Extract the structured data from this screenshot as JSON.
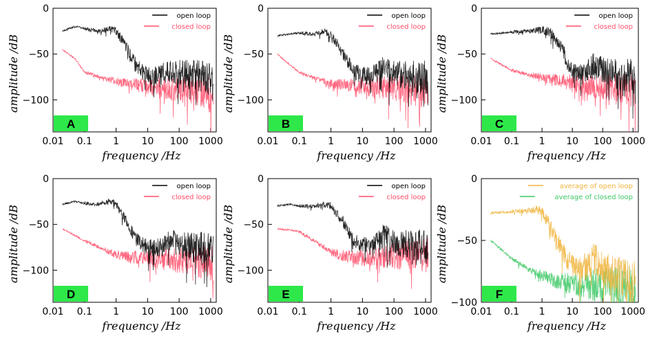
{
  "chart_data": [
    {
      "type": "line",
      "panel": "A",
      "xlabel": "frequency  /Hz",
      "ylabel": "amplitude  /dB",
      "xscale": "log",
      "xlim": [
        0.01,
        1500
      ],
      "ylim": [
        -135,
        0
      ],
      "xticks": [
        "0.01",
        "0.1",
        "1",
        "10",
        "100",
        "1000"
      ],
      "yticks": [
        "0",
        "−50",
        "−100"
      ],
      "ytick_values": [
        0,
        -50,
        -100
      ],
      "legend": "top-right",
      "series": [
        {
          "name": "open loop",
          "color": "#000000",
          "x": [
            0.02,
            0.05,
            0.1,
            0.3,
            0.6,
            1,
            2,
            4,
            8,
            15,
            30,
            50,
            80,
            150,
            300,
            600,
            1200
          ],
          "y": [
            -25,
            -20,
            -22,
            -25,
            -22,
            -25,
            -40,
            -60,
            -72,
            -75,
            -72,
            -68,
            -70,
            -72,
            -73,
            -74,
            -75
          ]
        },
        {
          "name": "closed loop",
          "color": "#ff4d6a",
          "x": [
            0.02,
            0.05,
            0.1,
            0.3,
            0.6,
            1,
            2,
            4,
            8,
            15,
            30,
            50,
            80,
            150,
            300,
            600,
            1200
          ],
          "y": [
            -45,
            -55,
            -70,
            -75,
            -78,
            -80,
            -82,
            -84,
            -85,
            -86,
            -87,
            -88,
            -88,
            -89,
            -90,
            -92,
            -95
          ]
        }
      ]
    },
    {
      "type": "line",
      "panel": "B",
      "xlabel": "frequency  /Hz",
      "ylabel": "amplitude  /dB",
      "xscale": "log",
      "xlim": [
        0.01,
        1500
      ],
      "ylim": [
        -135,
        0
      ],
      "xticks": [
        "0.01",
        "0.1",
        "1",
        "10",
        "100",
        "1000"
      ],
      "yticks": [
        "0",
        "−50",
        "−100"
      ],
      "ytick_values": [
        0,
        -50,
        -100
      ],
      "legend": "top-right",
      "series": [
        {
          "name": "open loop",
          "color": "#000000",
          "x": [
            0.02,
            0.05,
            0.1,
            0.3,
            0.6,
            1,
            2,
            4,
            8,
            15,
            30,
            50,
            80,
            150,
            300,
            600,
            1200
          ],
          "y": [
            -30,
            -28,
            -27,
            -28,
            -25,
            -28,
            -45,
            -62,
            -72,
            -74,
            -70,
            -63,
            -68,
            -72,
            -74,
            -75,
            -76
          ]
        },
        {
          "name": "closed loop",
          "color": "#ff4d6a",
          "x": [
            0.02,
            0.05,
            0.1,
            0.3,
            0.6,
            1,
            2,
            4,
            8,
            15,
            30,
            50,
            80,
            150,
            300,
            600,
            1200
          ],
          "y": [
            -50,
            -62,
            -70,
            -76,
            -80,
            -82,
            -83,
            -84,
            -85,
            -86,
            -86,
            -87,
            -88,
            -88,
            -89,
            -90,
            -92
          ]
        }
      ]
    },
    {
      "type": "line",
      "panel": "C",
      "xlabel": "frequency  /Hz",
      "ylabel": "amplitude  /dB",
      "xscale": "log",
      "xlim": [
        0.01,
        1500
      ],
      "ylim": [
        -135,
        0
      ],
      "xticks": [
        "0.01",
        "0.1",
        "1",
        "10",
        "100",
        "1000"
      ],
      "yticks": [
        "0",
        "−50",
        "−100"
      ],
      "ytick_values": [
        0,
        -50,
        -100
      ],
      "legend": "top-right",
      "series": [
        {
          "name": "open loop",
          "color": "#000000",
          "x": [
            0.02,
            0.05,
            0.1,
            0.3,
            0.6,
            1,
            2,
            4,
            8,
            15,
            30,
            50,
            80,
            150,
            300,
            600,
            1200
          ],
          "y": [
            -28,
            -27,
            -26,
            -25,
            -24,
            -24,
            -27,
            -40,
            -62,
            -72,
            -68,
            -62,
            -65,
            -70,
            -72,
            -73,
            -74
          ]
        },
        {
          "name": "closed loop",
          "color": "#ff4d6a",
          "x": [
            0.02,
            0.05,
            0.1,
            0.3,
            0.6,
            1,
            2,
            4,
            8,
            15,
            30,
            50,
            80,
            150,
            300,
            600,
            1200
          ],
          "y": [
            -55,
            -62,
            -68,
            -72,
            -74,
            -75,
            -77,
            -79,
            -81,
            -83,
            -84,
            -85,
            -86,
            -86,
            -87,
            -88,
            -90
          ]
        }
      ]
    },
    {
      "type": "line",
      "panel": "D",
      "xlabel": "frequency  /Hz",
      "ylabel": "amplitude  /dB",
      "xscale": "log",
      "xlim": [
        0.01,
        1500
      ],
      "ylim": [
        -135,
        0
      ],
      "xticks": [
        "0.01",
        "0.1",
        "1",
        "10",
        "100",
        "1000"
      ],
      "yticks": [
        "0",
        "−50",
        "−100"
      ],
      "ytick_values": [
        0,
        -50,
        -100
      ],
      "legend": "top-right",
      "series": [
        {
          "name": "open loop",
          "color": "#000000",
          "x": [
            0.02,
            0.05,
            0.1,
            0.3,
            0.6,
            1,
            2,
            4,
            8,
            15,
            30,
            50,
            80,
            150,
            300,
            600,
            1200
          ],
          "y": [
            -28,
            -25,
            -27,
            -28,
            -24,
            -28,
            -45,
            -65,
            -74,
            -76,
            -74,
            -65,
            -72,
            -74,
            -75,
            -76,
            -78
          ]
        },
        {
          "name": "closed loop",
          "color": "#ff4d6a",
          "x": [
            0.02,
            0.05,
            0.1,
            0.3,
            0.6,
            1,
            2,
            4,
            8,
            15,
            30,
            50,
            80,
            150,
            300,
            600,
            1200
          ],
          "y": [
            -55,
            -62,
            -68,
            -75,
            -80,
            -83,
            -85,
            -86,
            -87,
            -87,
            -88,
            -88,
            -89,
            -89,
            -90,
            -91,
            -93
          ]
        }
      ]
    },
    {
      "type": "line",
      "panel": "E",
      "xlabel": "frequency  /Hz",
      "ylabel": "amplitude  /dB",
      "xscale": "log",
      "xlim": [
        0.01,
        1500
      ],
      "ylim": [
        -135,
        0
      ],
      "xticks": [
        "0.01",
        "0.1",
        "1",
        "10",
        "100",
        "1000"
      ],
      "yticks": [
        "0",
        "−50",
        "−100"
      ],
      "ytick_values": [
        0,
        -50,
        -100
      ],
      "legend": "top-right",
      "series": [
        {
          "name": "open loop",
          "color": "#000000",
          "x": [
            0.02,
            0.05,
            0.1,
            0.3,
            0.6,
            1,
            2,
            4,
            8,
            15,
            30,
            50,
            80,
            150,
            300,
            600,
            1200
          ],
          "y": [
            -30,
            -28,
            -30,
            -30,
            -28,
            -30,
            -42,
            -60,
            -72,
            -74,
            -70,
            -62,
            -68,
            -70,
            -72,
            -74,
            -76
          ]
        },
        {
          "name": "closed loop",
          "color": "#ff4d6a",
          "x": [
            0.02,
            0.05,
            0.1,
            0.3,
            0.6,
            1,
            2,
            4,
            8,
            15,
            30,
            50,
            80,
            150,
            300,
            600,
            1200
          ],
          "y": [
            -55,
            -56,
            -58,
            -68,
            -75,
            -80,
            -83,
            -85,
            -86,
            -86,
            -86,
            -85,
            -85,
            -84,
            -84,
            -83,
            -82
          ]
        }
      ]
    },
    {
      "type": "line",
      "panel": "F",
      "xlabel": "frequency  /Hz",
      "ylabel": "amplitude  /dB",
      "xscale": "log",
      "xlim": [
        0.01,
        1500
      ],
      "ylim": [
        -100,
        0
      ],
      "xticks": [
        "0.01",
        "0.1",
        "1",
        "10",
        "100",
        "1000"
      ],
      "yticks": [
        "0",
        "−50",
        "−100"
      ],
      "ytick_values": [
        0,
        -50,
        -100
      ],
      "legend": "top-right",
      "series": [
        {
          "name": "average of open loop",
          "color": "#f0b43c",
          "x": [
            0.02,
            0.05,
            0.1,
            0.3,
            0.6,
            1,
            2,
            4,
            8,
            15,
            30,
            50,
            80,
            150,
            300,
            600,
            1200
          ],
          "y": [
            -28,
            -27,
            -27,
            -26,
            -25,
            -27,
            -40,
            -55,
            -68,
            -73,
            -70,
            -64,
            -70,
            -75,
            -80,
            -83,
            -85
          ]
        },
        {
          "name": "average of closed loop",
          "color": "#3cc864",
          "x": [
            0.02,
            0.05,
            0.1,
            0.3,
            0.6,
            1,
            2,
            4,
            8,
            15,
            30,
            50,
            80,
            150,
            300,
            600,
            1200
          ],
          "y": [
            -50,
            -58,
            -65,
            -72,
            -76,
            -78,
            -81,
            -83,
            -85,
            -86,
            -86,
            -86,
            -86,
            -87,
            -87,
            -88,
            -89
          ]
        }
      ]
    }
  ]
}
